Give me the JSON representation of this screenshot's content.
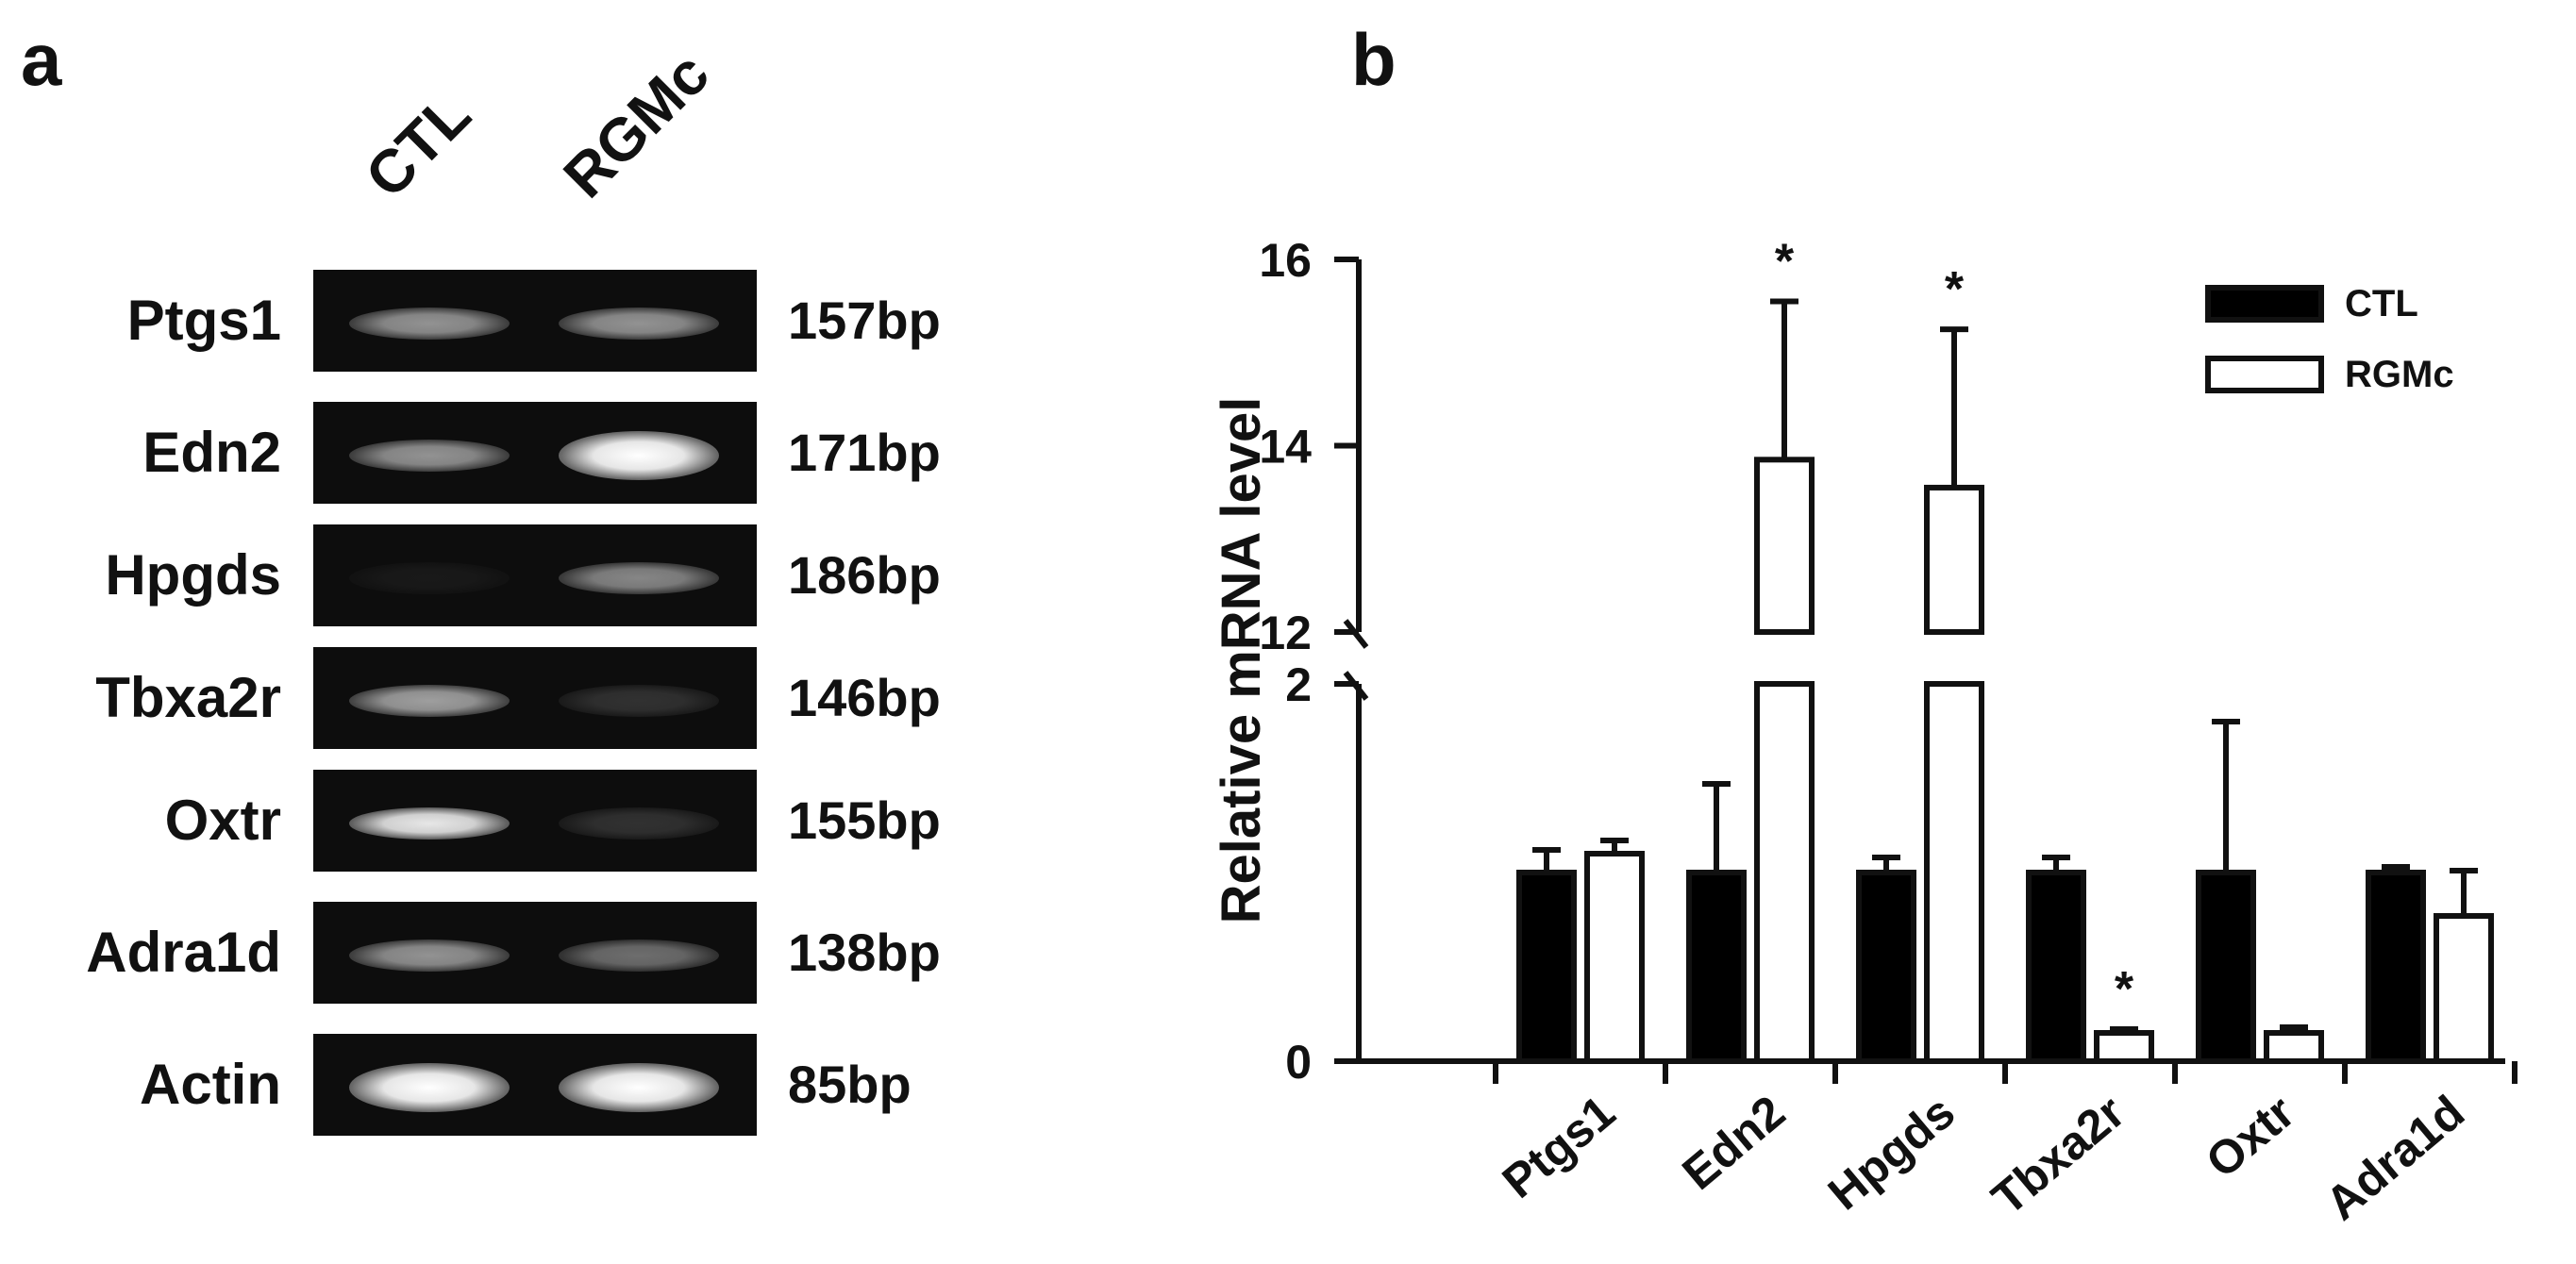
{
  "panel_a": {
    "letter": "a",
    "lanes": [
      "CTL",
      "RGMc"
    ],
    "rows": [
      {
        "gene": "Ptgs1",
        "size": "157bp",
        "ctl_band_intensity": 0.55,
        "rgmc_band_intensity": 0.55
      },
      {
        "gene": "Edn2",
        "size": "171bp",
        "ctl_band_intensity": 0.55,
        "rgmc_band_intensity": 1.0
      },
      {
        "gene": "Hpgds",
        "size": "186bp",
        "ctl_band_intensity": 0.05,
        "rgmc_band_intensity": 0.5
      },
      {
        "gene": "Tbxa2r",
        "size": "146bp",
        "ctl_band_intensity": 0.6,
        "rgmc_band_intensity": 0.15
      },
      {
        "gene": "Oxtr",
        "size": "155bp",
        "ctl_band_intensity": 0.9,
        "rgmc_band_intensity": 0.15
      },
      {
        "gene": "Adra1d",
        "size": "138bp",
        "ctl_band_intensity": 0.55,
        "rgmc_band_intensity": 0.4
      },
      {
        "gene": "Actin",
        "size": "85bp",
        "ctl_band_intensity": 1.0,
        "rgmc_band_intensity": 1.0
      }
    ]
  },
  "chart_data": {
    "type": "bar",
    "panel_letter": "b",
    "title": "",
    "xlabel": "",
    "ylabel": "Relative mRNA level",
    "categories": [
      "Ptgs1",
      "Edn2",
      "Hpgds",
      "Tbxa2r",
      "Oxtr",
      "Adra1d"
    ],
    "series": [
      {
        "name": "CTL",
        "fill": "#000000",
        "values": [
          1.0,
          1.0,
          1.0,
          1.0,
          1.0,
          1.0
        ],
        "errors": [
          0.12,
          0.47,
          0.08,
          0.08,
          0.8,
          0.03
        ]
      },
      {
        "name": "RGMc",
        "fill": "#ffffff",
        "values": [
          1.1,
          13.85,
          13.55,
          0.15,
          0.15,
          0.77
        ],
        "errors": [
          0.07,
          1.7,
          1.7,
          0.02,
          0.03,
          0.24
        ]
      }
    ],
    "significance": [
      "",
      "*",
      "*",
      "*",
      "",
      ""
    ],
    "y_axis_break": {
      "lower_range": [
        0,
        2
      ],
      "upper_range": [
        12,
        16
      ]
    },
    "y_ticks": [
      "0",
      "2",
      "12",
      "14",
      "16"
    ],
    "legend": {
      "position": "top-right",
      "entries": [
        "CTL",
        "RGMc"
      ]
    }
  }
}
